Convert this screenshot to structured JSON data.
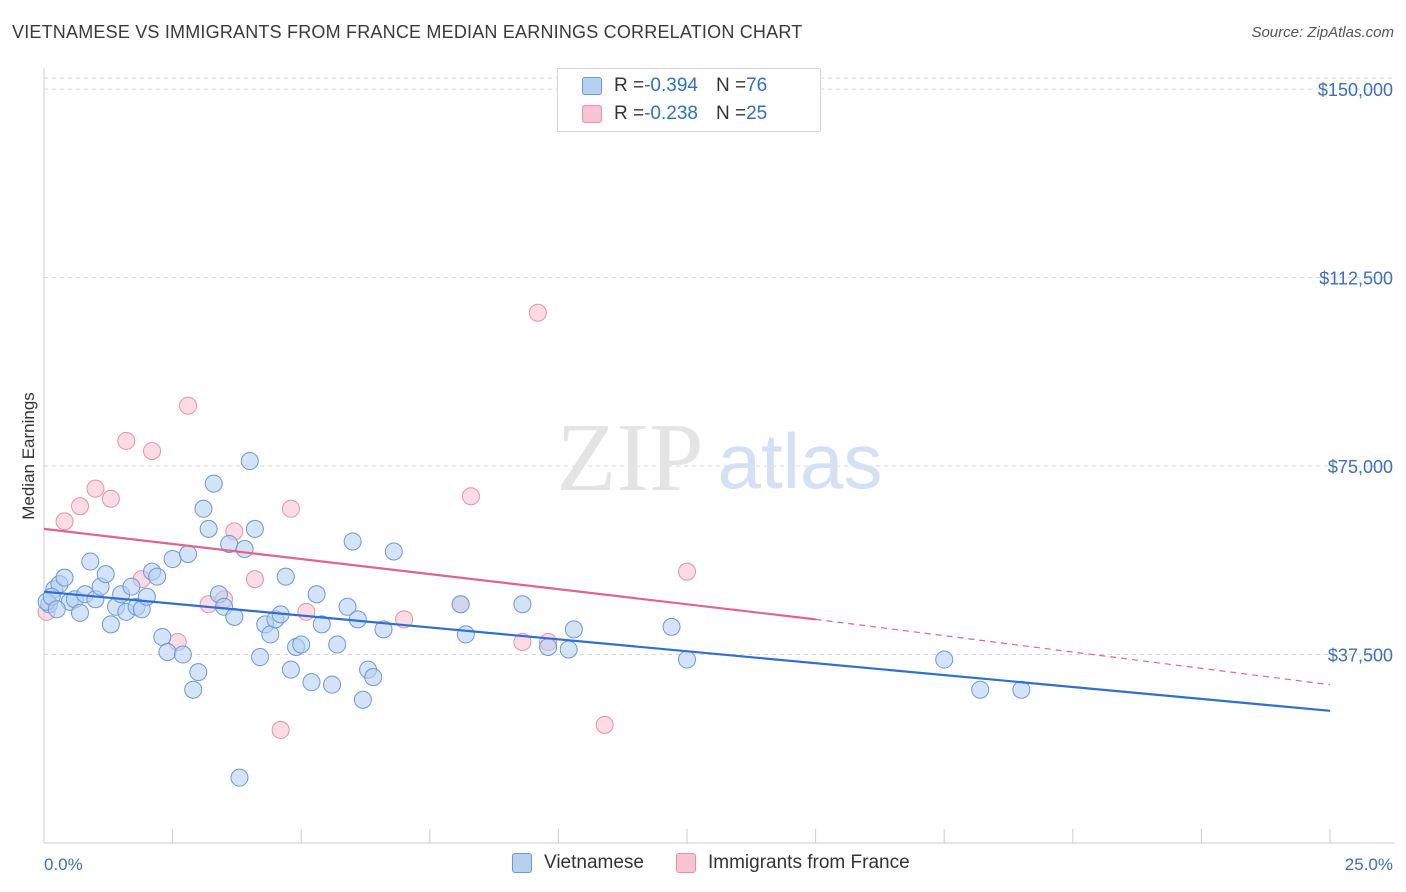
{
  "title": "VIETNAMESE VS IMMIGRANTS FROM FRANCE MEDIAN EARNINGS CORRELATION CHART",
  "source": "Source: ZipAtlas.com",
  "watermark": {
    "zip": "ZIP",
    "atlas": "atlas"
  },
  "legend": {
    "rows": [
      {
        "r_label": "R = ",
        "r_value": "-0.394",
        "n_label": "N = ",
        "n_value": "76"
      },
      {
        "r_label": "R = ",
        "r_value": "-0.238",
        "n_label": "N = ",
        "n_value": "25"
      }
    ]
  },
  "colors": {
    "blue_fill": "#b8d0f0",
    "blue_stroke": "#6a9ad8",
    "blue_line": "#2f6fd0",
    "pink_fill": "#f8c4d4",
    "pink_stroke": "#e890aa",
    "pink_line": "#e06490",
    "axis_text": "#3a6fc4",
    "grid": "#d6d6d6"
  },
  "chart_data": {
    "type": "scatter",
    "title": "VIETNAMESE VS IMMIGRANTS FROM FRANCE MEDIAN EARNINGS CORRELATION CHART",
    "xlabel": "",
    "ylabel": "Median Earnings",
    "xlim": [
      0,
      25
    ],
    "ylim": [
      0,
      155000
    ],
    "x_tick_labels": [
      "0.0%",
      "25.0%"
    ],
    "y_ticks": [
      37500,
      75000,
      112500,
      150000
    ],
    "y_tick_labels": [
      "$37,500",
      "$75,000",
      "$112,500",
      "$150,000"
    ],
    "grid": true,
    "legend_position": "bottom-center",
    "series": [
      {
        "name": "Vietnamese",
        "color": "#6a9ad8",
        "trend": {
          "x": [
            0,
            25
          ],
          "y": [
            50000,
            26300
          ],
          "style": "solid"
        },
        "points": [
          [
            0.1,
            47500
          ],
          [
            0.2,
            50500
          ],
          [
            0.3,
            51500
          ],
          [
            0.4,
            52800
          ],
          [
            0.5,
            48000
          ],
          [
            0.6,
            48500
          ],
          [
            0.7,
            45800
          ],
          [
            0.8,
            49500
          ],
          [
            0.9,
            56000
          ],
          [
            1.0,
            48500
          ],
          [
            1.1,
            51000
          ],
          [
            1.2,
            53500
          ],
          [
            1.3,
            43500
          ],
          [
            1.4,
            47000
          ],
          [
            1.5,
            49500
          ],
          [
            1.6,
            46000
          ],
          [
            1.7,
            51000
          ],
          [
            1.8,
            47000
          ],
          [
            1.9,
            46500
          ],
          [
            2.0,
            49000
          ],
          [
            2.1,
            54000
          ],
          [
            2.2,
            53000
          ],
          [
            2.3,
            41000
          ],
          [
            2.4,
            38000
          ],
          [
            2.5,
            56500
          ],
          [
            2.7,
            37500
          ],
          [
            2.8,
            57500
          ],
          [
            2.9,
            30500
          ],
          [
            3.0,
            34000
          ],
          [
            3.1,
            66500
          ],
          [
            3.2,
            62500
          ],
          [
            3.3,
            71500
          ],
          [
            3.4,
            49500
          ],
          [
            3.5,
            47000
          ],
          [
            3.6,
            59500
          ],
          [
            3.7,
            45000
          ],
          [
            3.8,
            13000
          ],
          [
            3.9,
            58500
          ],
          [
            4.0,
            76000
          ],
          [
            4.1,
            62500
          ],
          [
            4.2,
            37000
          ],
          [
            4.3,
            43500
          ],
          [
            4.4,
            41500
          ],
          [
            4.5,
            44500
          ],
          [
            4.6,
            45500
          ],
          [
            4.7,
            53000
          ],
          [
            4.8,
            34500
          ],
          [
            4.9,
            39000
          ],
          [
            5.0,
            39500
          ],
          [
            5.2,
            32000
          ],
          [
            5.3,
            49500
          ],
          [
            5.4,
            43500
          ],
          [
            5.6,
            31500
          ],
          [
            5.7,
            39500
          ],
          [
            5.9,
            47000
          ],
          [
            6.0,
            60000
          ],
          [
            6.1,
            44500
          ],
          [
            6.2,
            28500
          ],
          [
            6.3,
            34500
          ],
          [
            6.4,
            33000
          ],
          [
            6.6,
            42500
          ],
          [
            6.8,
            58000
          ],
          [
            8.1,
            47500
          ],
          [
            8.2,
            41500
          ],
          [
            9.3,
            47500
          ],
          [
            9.8,
            39000
          ],
          [
            10.2,
            38500
          ],
          [
            10.3,
            42500
          ],
          [
            12.2,
            43000
          ],
          [
            12.5,
            36500
          ],
          [
            17.5,
            36500
          ],
          [
            18.2,
            30500
          ],
          [
            19.0,
            30500
          ],
          [
            0.05,
            48000
          ],
          [
            0.15,
            49000
          ],
          [
            0.25,
            46500
          ]
        ]
      },
      {
        "name": "Immigrants from France",
        "color": "#e890aa",
        "trend": {
          "x": [
            0,
            15
          ],
          "y": [
            62500,
            44500
          ],
          "style": "solid",
          "extrapolated_to": [
            25,
            31500
          ]
        },
        "points": [
          [
            0.05,
            46000
          ],
          [
            0.4,
            64000
          ],
          [
            0.7,
            67000
          ],
          [
            1.0,
            70500
          ],
          [
            1.3,
            68500
          ],
          [
            1.6,
            80000
          ],
          [
            1.9,
            52500
          ],
          [
            2.1,
            78000
          ],
          [
            2.6,
            40000
          ],
          [
            2.8,
            87000
          ],
          [
            3.2,
            47500
          ],
          [
            3.5,
            48500
          ],
          [
            3.7,
            62000
          ],
          [
            4.1,
            52500
          ],
          [
            4.6,
            22500
          ],
          [
            4.8,
            66500
          ],
          [
            5.1,
            46000
          ],
          [
            7.0,
            44500
          ],
          [
            8.1,
            47500
          ],
          [
            8.3,
            69000
          ],
          [
            9.3,
            40000
          ],
          [
            9.6,
            105500
          ],
          [
            9.8,
            40000
          ],
          [
            10.9,
            23500
          ],
          [
            12.5,
            54000
          ]
        ]
      }
    ]
  }
}
